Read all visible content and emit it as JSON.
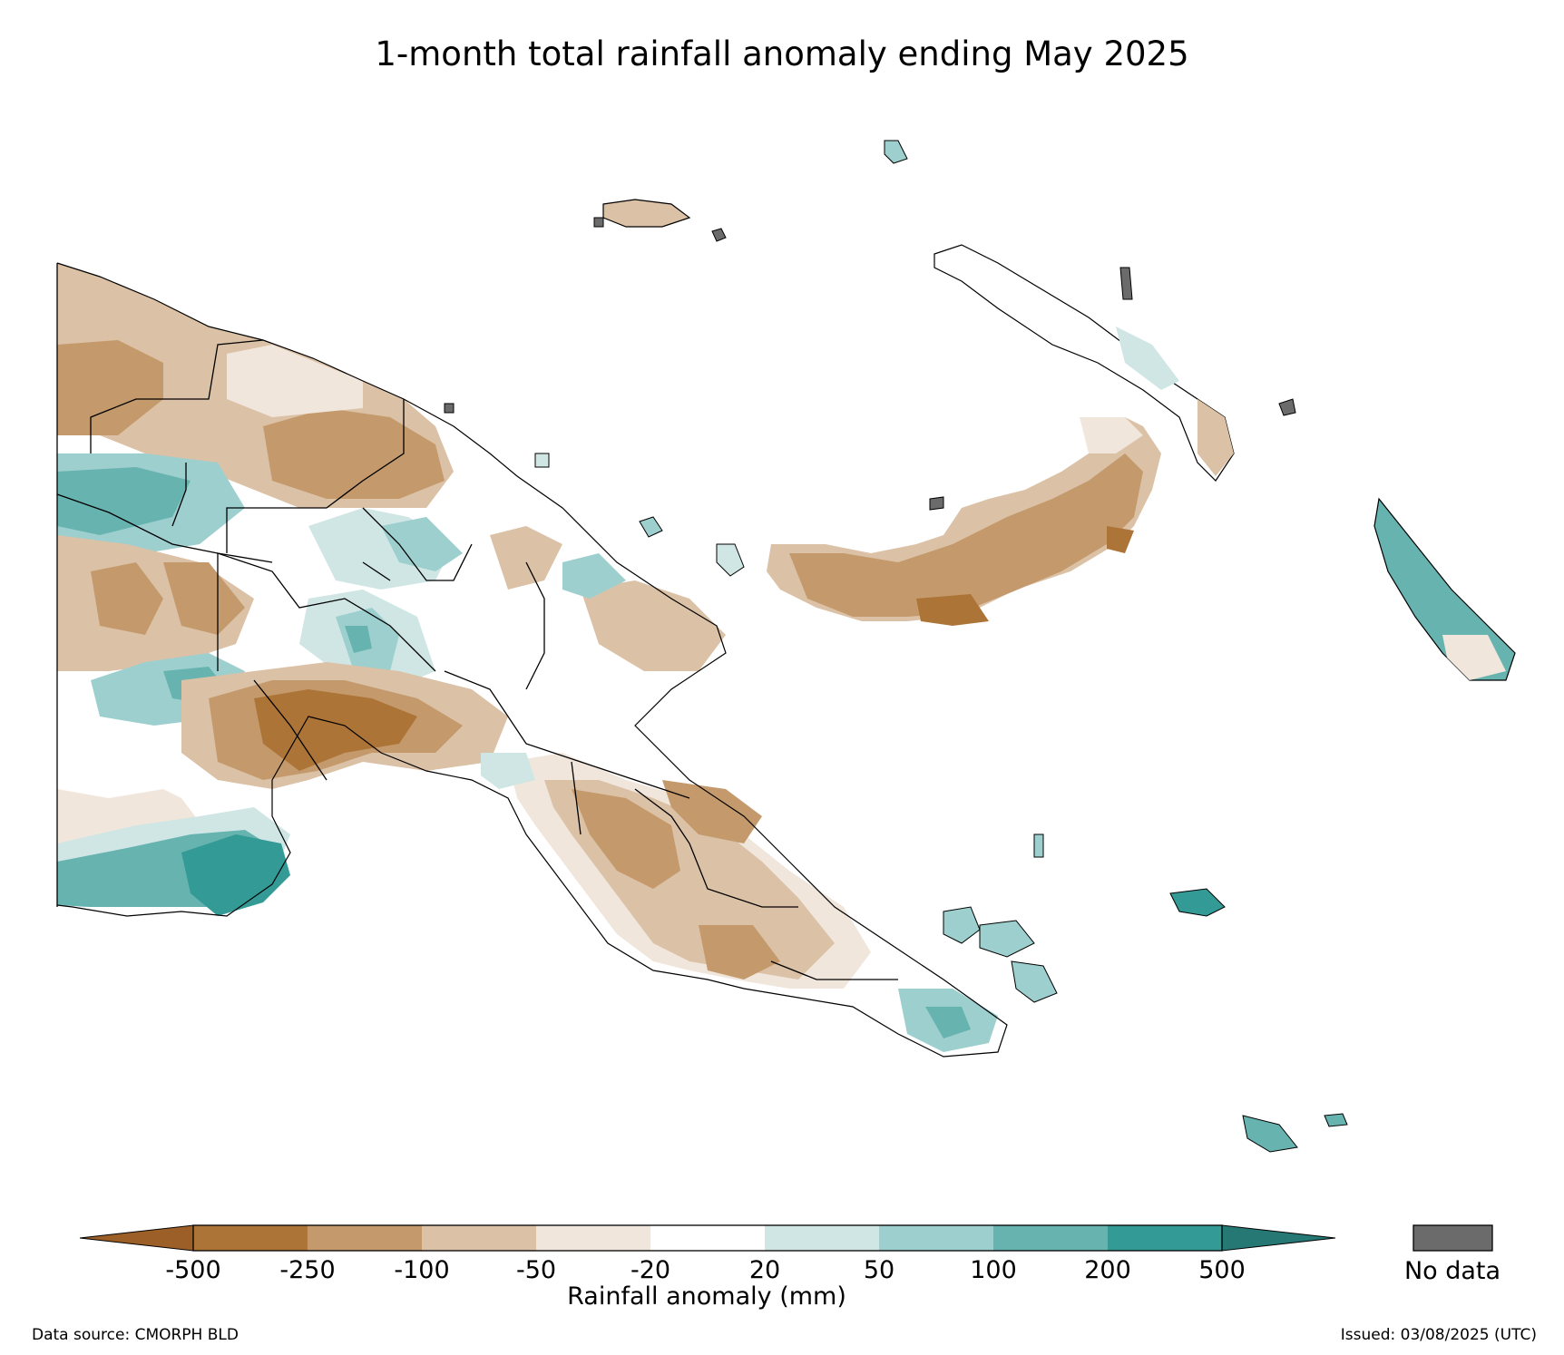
{
  "title": "1-month total rainfall anomaly ending May 2025",
  "legend": {
    "label": "Rainfall anomaly (mm)",
    "ticks": [
      "-500",
      "-250",
      "-100",
      "-50",
      "-20",
      "20",
      "50",
      "100",
      "200",
      "500"
    ],
    "colors": [
      "#9c5f27",
      "#ad7438",
      "#c49a6c",
      "#dbc1a6",
      "#f1e6dc",
      "#ffffff",
      "#cfe6e5",
      "#9dcfcf",
      "#66b3b0",
      "#339a96",
      "#257874"
    ],
    "no_data_label": "No data",
    "no_data_color": "#6b6b6b"
  },
  "footer": {
    "source": "Data source: CMORPH BLD",
    "issued": "Issued: 03/08/2025 (UTC)"
  }
}
